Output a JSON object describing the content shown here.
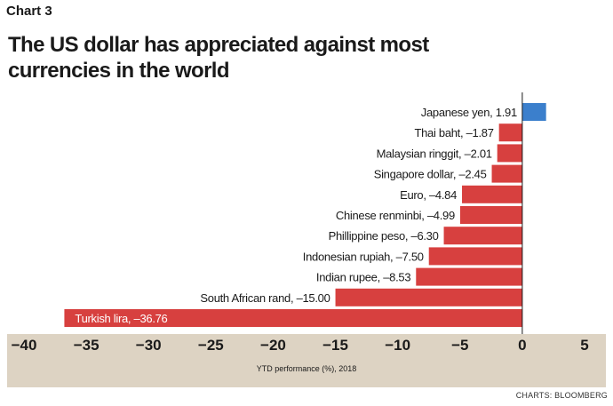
{
  "chart_label": "Chart 3",
  "source": "CHARTS: BLOOMBERG",
  "colors": {
    "positive": "#3b7fcc",
    "negative": "#d7403f",
    "axis_band": "#ddd3c3"
  },
  "chart_data": {
    "type": "bar",
    "orientation": "horizontal",
    "title": "The US dollar has appreciated against most currencies in the world",
    "xlabel": "YTD performance (%), 2018",
    "ylabel": "",
    "xlim": [
      -40,
      5
    ],
    "xticks": [
      -40,
      -35,
      -30,
      -25,
      -20,
      -15,
      -10,
      -5,
      0,
      5
    ],
    "grid": false,
    "categories": [
      "Japanese yen",
      "Thai baht",
      "Malaysian ringgit",
      "Singapore dollar",
      "Euro",
      "Chinese renminbi",
      "Phillippine peso",
      "Indonesian rupiah",
      "Indian rupee",
      "South African rand",
      "Turkish lira"
    ],
    "values": [
      1.91,
      -1.87,
      -2.01,
      -2.45,
      -4.84,
      -4.99,
      -6.3,
      -7.5,
      -8.53,
      -15.0,
      -36.76
    ],
    "labels": [
      "Japanese yen, 1.91",
      "Thai baht, –1.87",
      "Malaysian ringgit,  –2.01",
      "Singapore dollar, –2.45",
      "Euro, –4.84",
      "Chinese renminbi, –4.99",
      "Phillippine peso, –6.30",
      "Indonesian rupiah, –7.50",
      "Indian rupee, –8.53",
      "South African rand, –15.00",
      "Turkish lira, –36.76"
    ]
  }
}
